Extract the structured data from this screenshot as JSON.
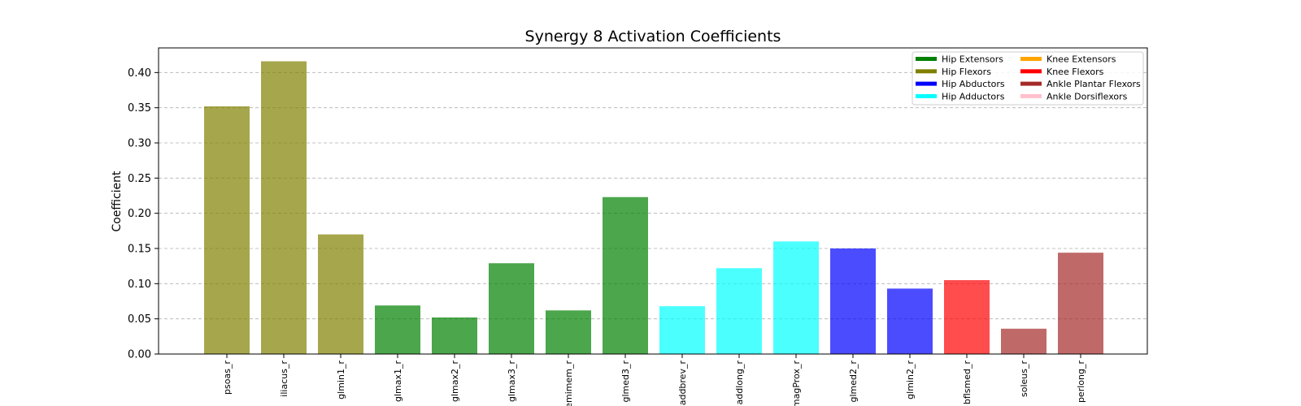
{
  "chart_data": {
    "type": "bar",
    "title": "Synergy 8 Activation Coefficients",
    "xlabel": "",
    "ylabel": "Coefficient",
    "ylim": [
      0,
      0.435
    ],
    "yticks": [
      "0.00",
      "0.05",
      "0.10",
      "0.15",
      "0.20",
      "0.25",
      "0.30",
      "0.35",
      "0.40"
    ],
    "grid": "horizontal-dashed",
    "legend_position": "top-right",
    "categories": [
      "psoas_r",
      "iliacus_r",
      "glmin1_r",
      "glmax1_r",
      "glmax2_r",
      "glmax3_r",
      "semimem_r",
      "glmed3_r",
      "addbrev_r",
      "addlong_r",
      "addmagProx_r",
      "glmed2_r",
      "glmin2_r",
      "bflsmed_r",
      "soleus_r",
      "perlong_r"
    ],
    "values": [
      0.352,
      0.416,
      0.17,
      0.069,
      0.052,
      0.129,
      0.062,
      0.223,
      0.068,
      0.122,
      0.16,
      0.15,
      0.093,
      0.105,
      0.036,
      0.144
    ],
    "groups": [
      "Hip Flexors",
      "Hip Flexors",
      "Hip Flexors",
      "Hip Extensors",
      "Hip Extensors",
      "Hip Extensors",
      "Hip Extensors",
      "Hip Extensors",
      "Hip Adductors",
      "Hip Adductors",
      "Hip Adductors",
      "Hip Abductors",
      "Hip Abductors",
      "Knee Flexors",
      "Ankle Plantar Flexors",
      "Ankle Plantar Flexors"
    ],
    "legend": [
      {
        "name": "Hip Extensors",
        "color": "#008000"
      },
      {
        "name": "Hip Flexors",
        "color": "#808000"
      },
      {
        "name": "Hip Abductors",
        "color": "#0000ff"
      },
      {
        "name": "Hip Adductors",
        "color": "#00ffff"
      },
      {
        "name": "Knee Extensors",
        "color": "#ffa500"
      },
      {
        "name": "Knee Flexors",
        "color": "#ff0000"
      },
      {
        "name": "Ankle Plantar Flexors",
        "color": "#a52a2a"
      },
      {
        "name": "Ankle Dorsiflexors",
        "color": "#ffc0cb"
      }
    ],
    "bar_alpha": 0.7
  }
}
